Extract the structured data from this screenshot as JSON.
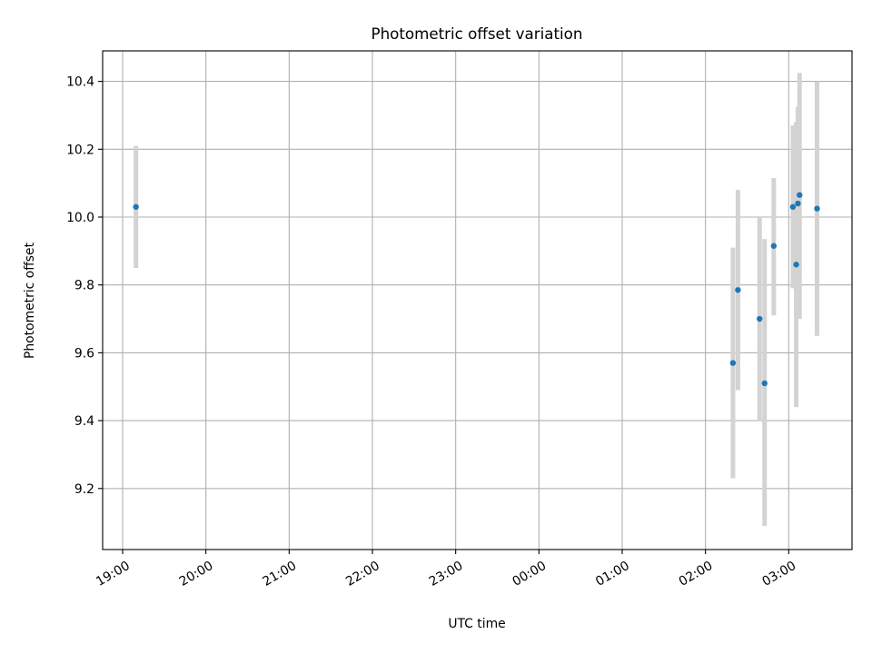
{
  "chart_data": {
    "type": "scatter",
    "title": "Photometric offset variation",
    "xlabel": "UTC time",
    "ylabel": "Photometric offset",
    "x_unit": "hours",
    "x_ticks": [
      {
        "value": 19,
        "label": "19:00"
      },
      {
        "value": 20,
        "label": "20:00"
      },
      {
        "value": 21,
        "label": "21:00"
      },
      {
        "value": 22,
        "label": "22:00"
      },
      {
        "value": 23,
        "label": "23:00"
      },
      {
        "value": 24,
        "label": "00:00"
      },
      {
        "value": 25,
        "label": "01:00"
      },
      {
        "value": 26,
        "label": "02:00"
      },
      {
        "value": 27,
        "label": "03:00"
      }
    ],
    "y_ticks": [
      {
        "value": 9.2,
        "label": "9.2"
      },
      {
        "value": 9.4,
        "label": "9.4"
      },
      {
        "value": 9.6,
        "label": "9.6"
      },
      {
        "value": 9.8,
        "label": "9.8"
      },
      {
        "value": 10.0,
        "label": "10.0"
      },
      {
        "value": 10.2,
        "label": "10.2"
      },
      {
        "value": 10.4,
        "label": "10.4"
      }
    ],
    "xlim": [
      18.76,
      27.76
    ],
    "ylim": [
      9.02,
      10.49
    ],
    "grid": true,
    "marker_color": "#1f77b4",
    "errorbar_color": "#d3d3d3",
    "points": [
      {
        "time": "19:10",
        "x": 19.16,
        "y": 10.03,
        "ylow": 9.85,
        "yhigh": 10.21
      },
      {
        "time": "02:20",
        "x": 26.33,
        "y": 9.57,
        "ylow": 9.23,
        "yhigh": 9.91
      },
      {
        "time": "02:23",
        "x": 26.39,
        "y": 9.785,
        "ylow": 9.49,
        "yhigh": 10.08
      },
      {
        "time": "02:39",
        "x": 26.65,
        "y": 9.7,
        "ylow": 9.4,
        "yhigh": 10.0
      },
      {
        "time": "02:42",
        "x": 26.71,
        "y": 9.51,
        "ylow": 9.09,
        "yhigh": 9.935
      },
      {
        "time": "02:49",
        "x": 26.82,
        "y": 9.915,
        "ylow": 9.71,
        "yhigh": 10.115
      },
      {
        "time": "03:03",
        "x": 27.05,
        "y": 10.03,
        "ylow": 9.79,
        "yhigh": 10.27
      },
      {
        "time": "03:05",
        "x": 27.09,
        "y": 9.86,
        "ylow": 9.44,
        "yhigh": 10.28
      },
      {
        "time": "03:06",
        "x": 27.11,
        "y": 10.04,
        "ylow": 9.75,
        "yhigh": 10.325
      },
      {
        "time": "03:08",
        "x": 27.13,
        "y": 10.065,
        "ylow": 9.7,
        "yhigh": 10.425
      },
      {
        "time": "03:20",
        "x": 27.34,
        "y": 10.025,
        "ylow": 9.65,
        "yhigh": 10.4
      }
    ]
  }
}
